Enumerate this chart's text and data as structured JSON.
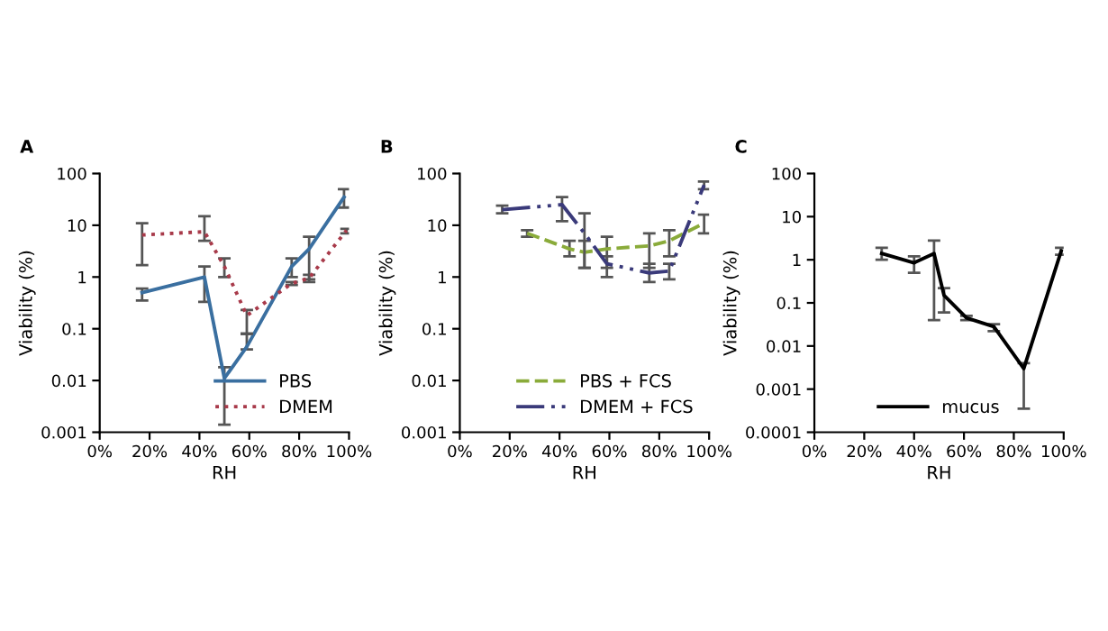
{
  "chart_data": [
    {
      "type": "line",
      "annotations": [
        "A"
      ],
      "xlabel": "RH",
      "ylabel": "Viability (%)",
      "log": "y",
      "legend": "bottom right",
      "grid": false,
      "marker": "none",
      "xlim": [
        0,
        100
      ],
      "xticks": [
        {
          "value": 0,
          "label": "0%"
        },
        {
          "value": 20,
          "label": "20%"
        },
        {
          "value": 40,
          "label": "40%"
        },
        {
          "value": 60,
          "label": "60%"
        },
        {
          "value": 80,
          "label": "80%"
        },
        {
          "value": 100,
          "label": "100%"
        }
      ],
      "ylim": [
        0.001,
        100
      ],
      "yticks": [
        {
          "value": 0.001,
          "label": "0.001"
        },
        {
          "value": 0.01,
          "label": "0.01"
        },
        {
          "value": 0.1,
          "label": "0.1"
        },
        {
          "value": 1,
          "label": "1"
        },
        {
          "value": 10,
          "label": "10"
        },
        {
          "value": 100,
          "label": "100"
        }
      ],
      "series": [
        {
          "name": "PBS",
          "color": "#3a6fa0",
          "line_style": "solid",
          "x": [
            17,
            42,
            50,
            59,
            77,
            84,
            98
          ],
          "values": [
            0.5,
            1.0,
            0.011,
            0.045,
            1.6,
            3.5,
            35
          ],
          "errors": [
            [
              0.35,
              0.6
            ],
            [
              0.33,
              1.6
            ],
            [
              0.0014,
              0.018
            ],
            [
              0.04,
              0.08
            ],
            [
              1.0,
              2.3
            ],
            [
              0.9,
              6
            ],
            [
              22,
              50
            ]
          ]
        },
        {
          "name": "DMEM",
          "color": "#a83a4a",
          "line_style": "dotted",
          "x": [
            17,
            42,
            50,
            59,
            77,
            84,
            99
          ],
          "values": [
            6.5,
            7.5,
            1.6,
            0.18,
            0.75,
            0.95,
            8
          ],
          "errors": [
            [
              1.7,
              11
            ],
            [
              5,
              15
            ],
            [
              1.0,
              2.3
            ],
            [
              0.08,
              0.23
            ],
            [
              0.7,
              0.8
            ],
            [
              0.8,
              1.1
            ],
            [
              7,
              8.5
            ]
          ]
        }
      ]
    },
    {
      "type": "line",
      "annotations": [
        "B"
      ],
      "xlabel": "RH",
      "ylabel": "Viability (%)",
      "log": "y",
      "legend": "bottom right",
      "grid": false,
      "marker": "none",
      "xlim": [
        0,
        100
      ],
      "xticks": [
        {
          "value": 0,
          "label": "0%"
        },
        {
          "value": 20,
          "label": "20%"
        },
        {
          "value": 40,
          "label": "40%"
        },
        {
          "value": 60,
          "label": "60%"
        },
        {
          "value": 80,
          "label": "80%"
        },
        {
          "value": 100,
          "label": "100%"
        }
      ],
      "ylim": [
        0.001,
        100
      ],
      "yticks": [
        {
          "value": 0.001,
          "label": "0.001"
        },
        {
          "value": 0.01,
          "label": "0.01"
        },
        {
          "value": 0.1,
          "label": "0.1"
        },
        {
          "value": 1,
          "label": "1"
        },
        {
          "value": 10,
          "label": "10"
        },
        {
          "value": 100,
          "label": "100"
        }
      ],
      "series": [
        {
          "name": "PBS + FCS",
          "color": "#8aab3a",
          "line_style": "dashed",
          "x": [
            27,
            44,
            50,
            59,
            76,
            84,
            98
          ],
          "values": [
            7,
            3.5,
            3,
            3.5,
            4,
            5,
            11
          ],
          "errors": [
            [
              6,
              8
            ],
            [
              2.5,
              5
            ],
            [
              1.5,
              5
            ],
            [
              1.5,
              6
            ],
            [
              1.5,
              7
            ],
            [
              2.5,
              8
            ],
            [
              7,
              16
            ]
          ]
        },
        {
          "name": "DMEM + FCS",
          "color": "#3a3a7a",
          "line_style": "dashdot",
          "x": [
            17,
            41,
            50,
            59,
            76,
            84,
            98
          ],
          "values": [
            20,
            25,
            7,
            1.8,
            1.2,
            1.3,
            60
          ],
          "errors": [
            [
              17,
              24
            ],
            [
              12,
              35
            ],
            [
              1.5,
              17
            ],
            [
              1.0,
              2.5
            ],
            [
              0.8,
              1.8
            ],
            [
              0.9,
              1.8
            ],
            [
              50,
              70
            ]
          ]
        }
      ]
    },
    {
      "type": "line",
      "annotations": [
        "C"
      ],
      "xlabel": "RH",
      "ylabel": "Viability (%)",
      "log": "y",
      "legend": "bottom",
      "grid": false,
      "marker": "none",
      "xlim": [
        0,
        100
      ],
      "xticks": [
        {
          "value": 0,
          "label": "0%"
        },
        {
          "value": 20,
          "label": "20%"
        },
        {
          "value": 40,
          "label": "40%"
        },
        {
          "value": 60,
          "label": "60%"
        },
        {
          "value": 80,
          "label": "80%"
        },
        {
          "value": 100,
          "label": "100%"
        }
      ],
      "ylim": [
        0.0001,
        100
      ],
      "yticks": [
        {
          "value": 0.0001,
          "label": "0.0001"
        },
        {
          "value": 0.001,
          "label": "0.001"
        },
        {
          "value": 0.01,
          "label": "0.01"
        },
        {
          "value": 0.1,
          "label": "0.1"
        },
        {
          "value": 1,
          "label": "1"
        },
        {
          "value": 10,
          "label": "10"
        },
        {
          "value": 100,
          "label": "100"
        }
      ],
      "series": [
        {
          "name": "mucus",
          "color": "#000000",
          "line_style": "solid",
          "x": [
            27,
            40,
            48,
            52,
            61,
            72,
            84,
            99
          ],
          "values": [
            1.4,
            0.85,
            1.4,
            0.15,
            0.045,
            0.028,
            0.003,
            1.6
          ],
          "errors": [
            [
              1.0,
              1.9
            ],
            [
              0.5,
              1.2
            ],
            [
              0.04,
              2.8
            ],
            [
              0.06,
              0.22
            ],
            [
              0.04,
              0.05
            ],
            [
              0.022,
              0.032
            ],
            [
              0.00035,
              0.004
            ],
            [
              1.3,
              1.9
            ]
          ]
        }
      ]
    }
  ]
}
